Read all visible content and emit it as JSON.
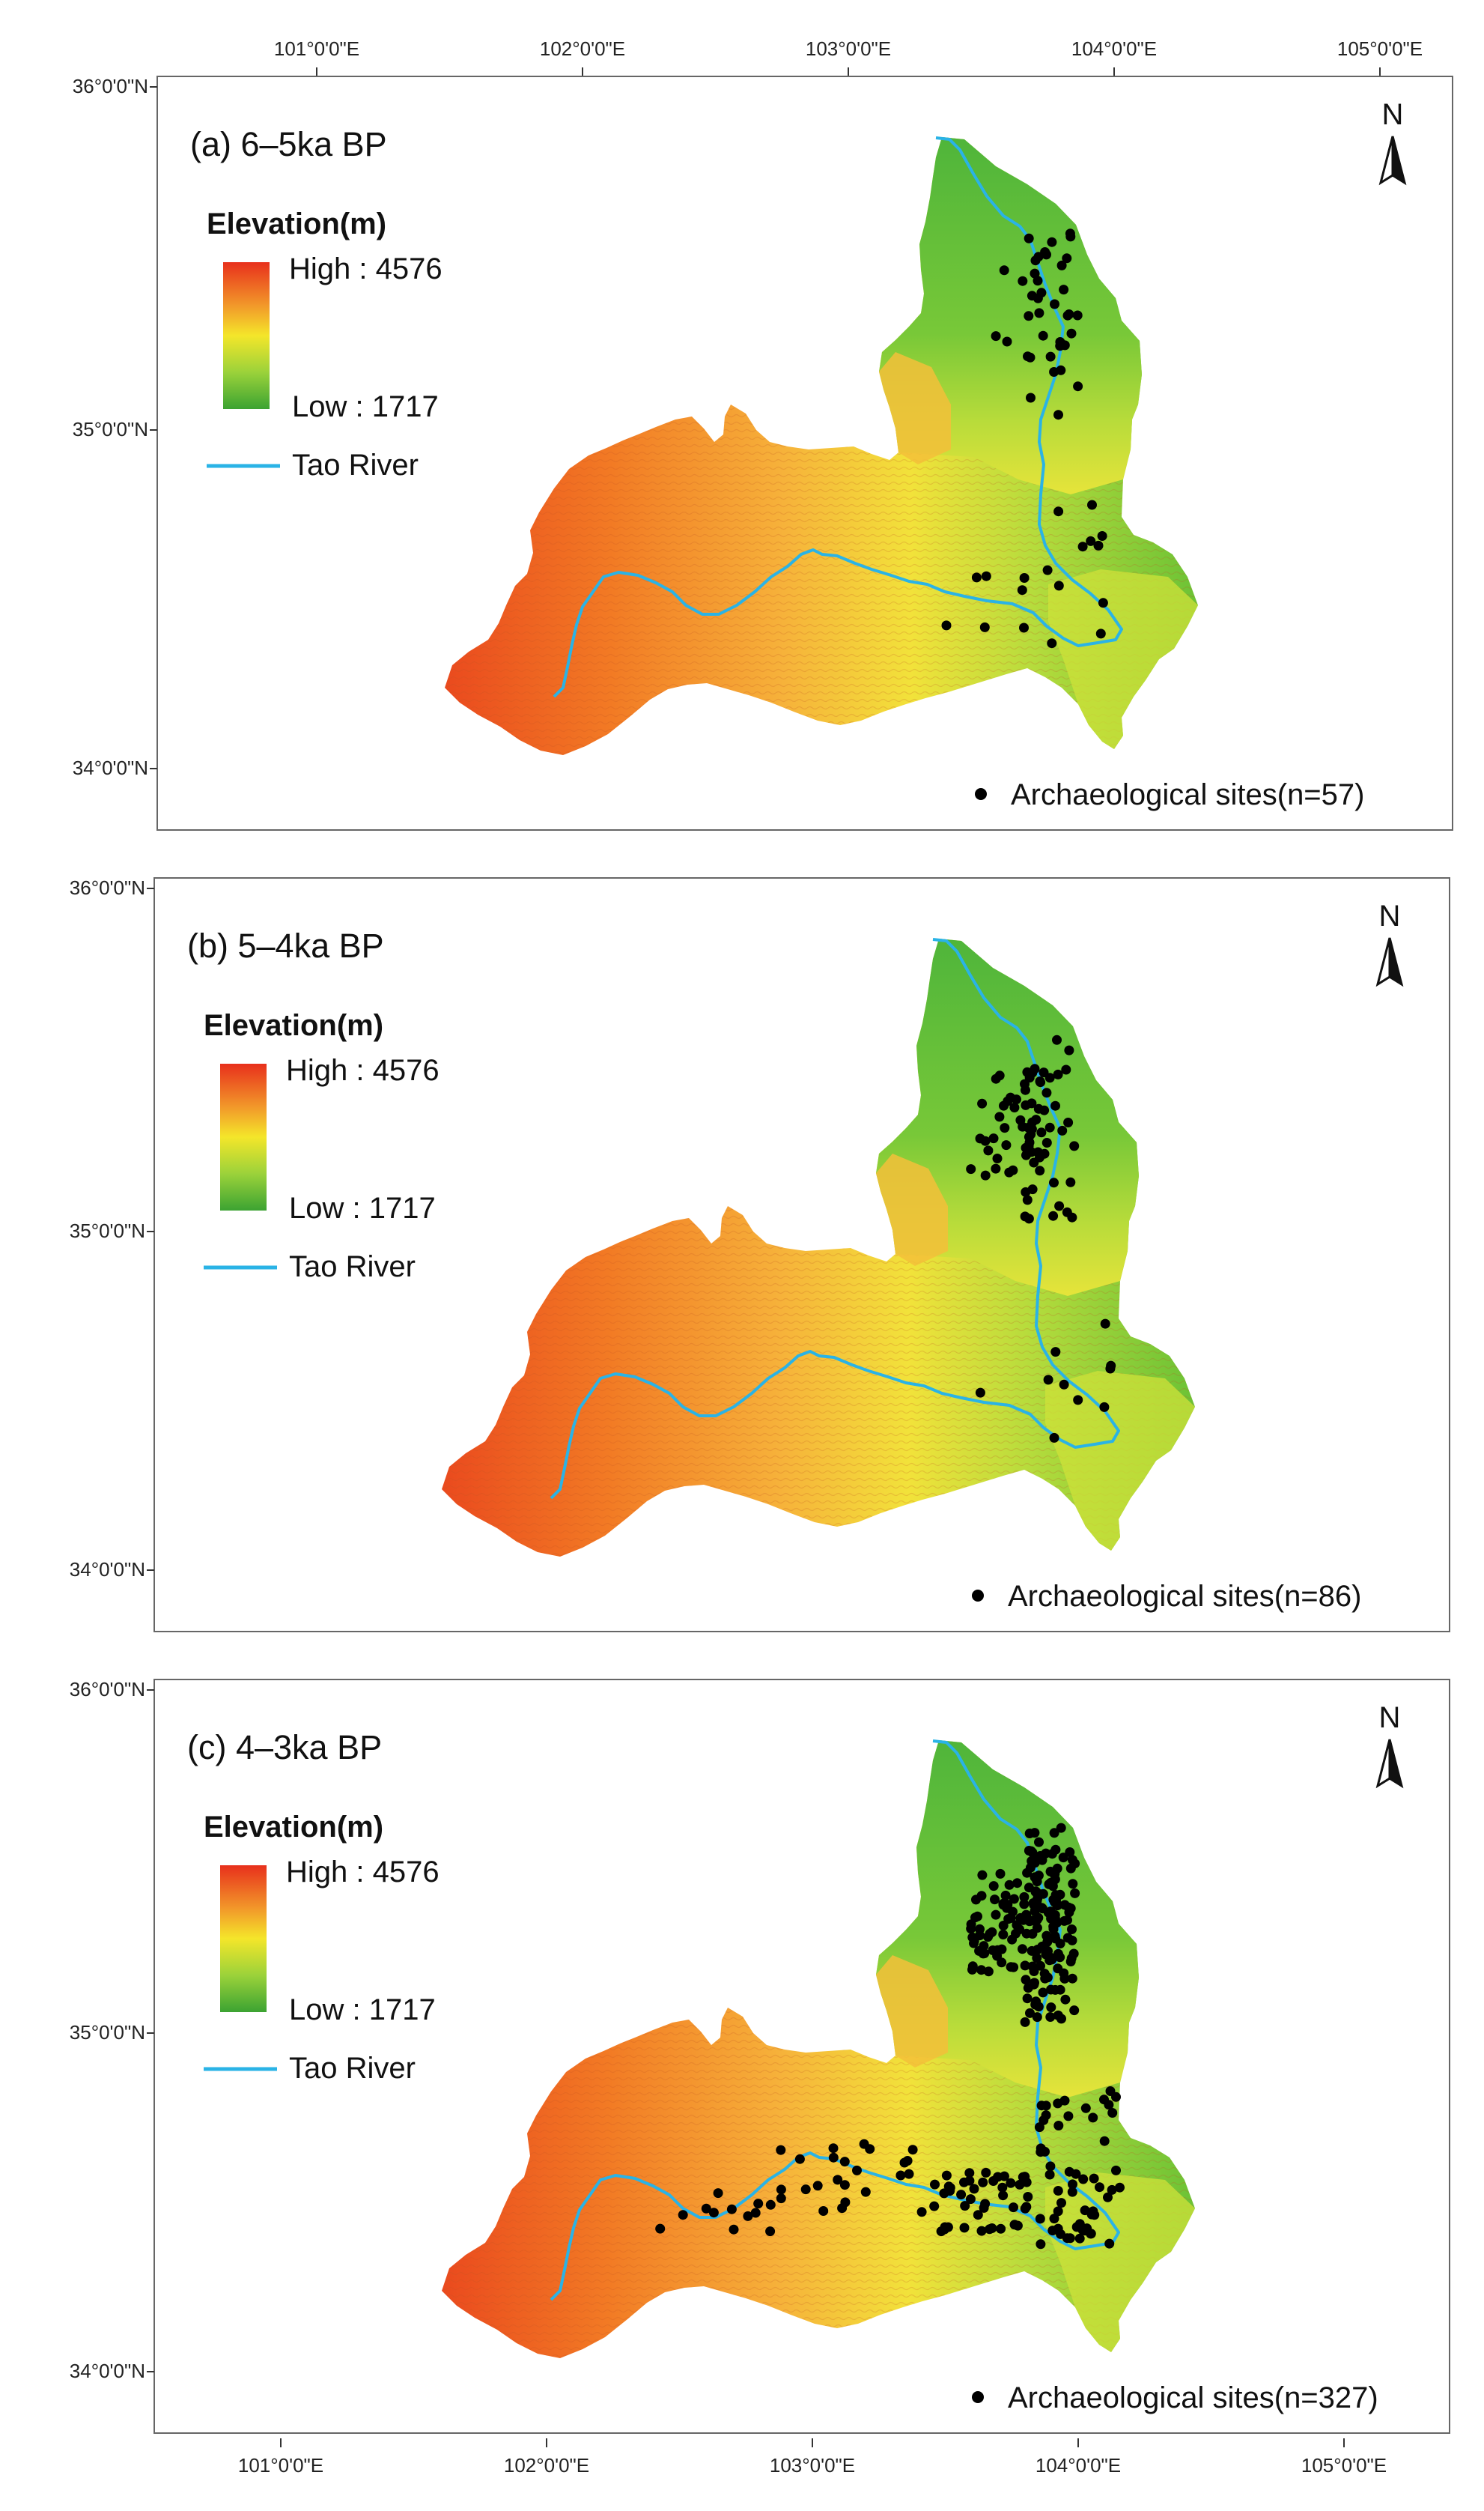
{
  "figure": {
    "top_axis_labels": [
      "101°0'0\"E",
      "102°0'0\"E",
      "103°0'0\"E",
      "104°0'0\"E",
      "105°0'0\"E"
    ],
    "bottom_axis_labels": [
      "101°0'0\"E",
      "102°0'0\"E",
      "103°0'0\"E",
      "104°0'0\"E",
      "105°0'0\"E"
    ],
    "left_axis_labels": [
      "36°0'0\"N",
      "35°0'0\"N",
      "34°0'0\"N"
    ],
    "colors": {
      "river": "#2ab3e6",
      "site": "#000000",
      "elevation_high": "#e8301c",
      "elevation_mid": "#f4e62a",
      "elevation_low": "#3ca332"
    }
  },
  "panels": [
    {
      "title": "(a) 6–5ka BP",
      "legend": {
        "title": "Elevation(m)",
        "high": "High : 4576",
        "low": "Low : 1717",
        "river": "Tao River"
      },
      "north": "N",
      "sites_label": "Archaeological sites(n=57)",
      "site_count": 57
    },
    {
      "title": "(b) 5–4ka BP",
      "legend": {
        "title": "Elevation(m)",
        "high": "High : 4576",
        "low": "Low : 1717",
        "river": "Tao River"
      },
      "north": "N",
      "sites_label": "Archaeological sites(n=86)",
      "site_count": 86
    },
    {
      "title": "(c) 4–3ka BP",
      "legend": {
        "title": "Elevation(m)",
        "high": "High : 4576",
        "low": "Low : 1717",
        "river": "Tao River"
      },
      "north": "N",
      "sites_label": "Archaeological sites(n=327)",
      "site_count": 327
    }
  ]
}
